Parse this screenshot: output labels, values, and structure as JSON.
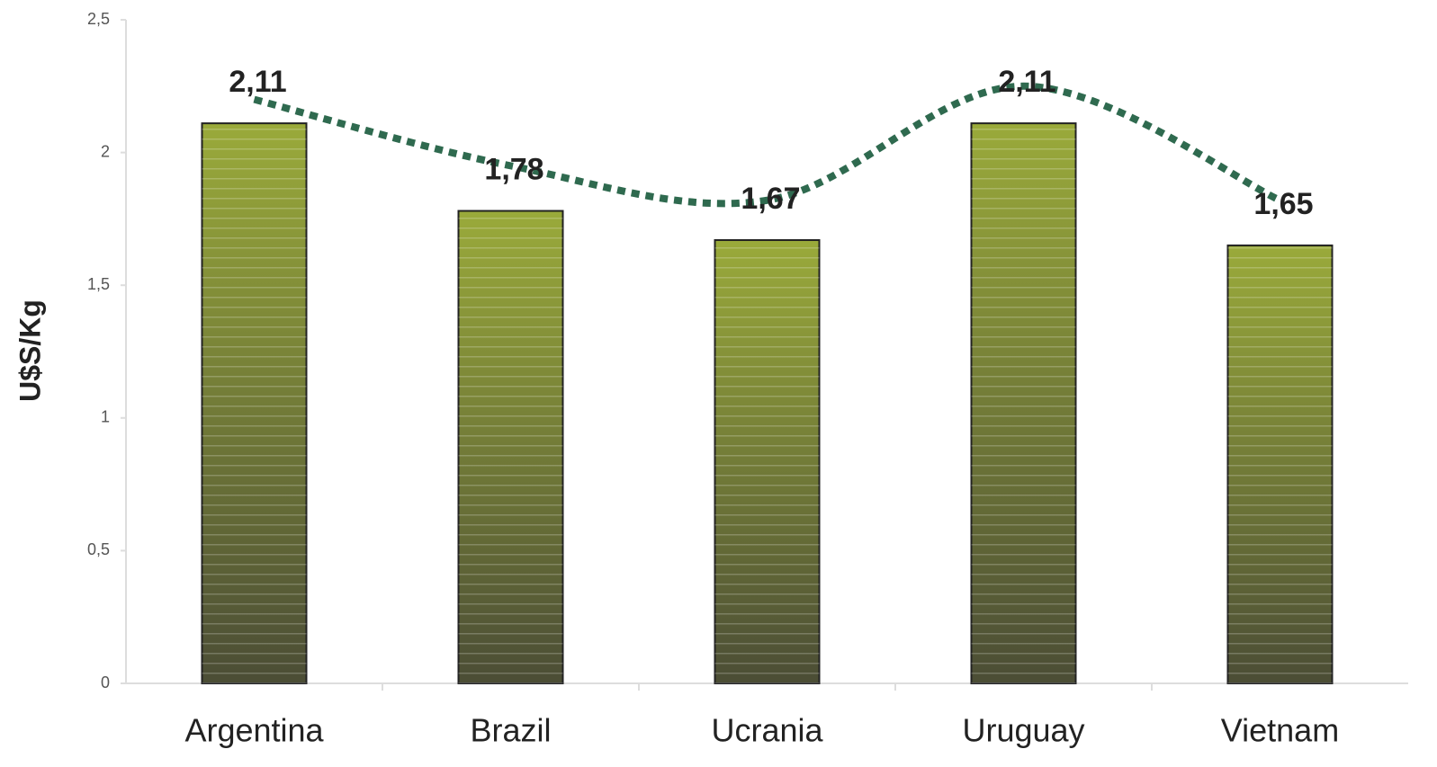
{
  "chart_data": {
    "type": "bar",
    "y_label": "U$S/Kg",
    "categories": [
      "Argentina",
      "Brazil",
      "Ucrania",
      "Uruguay",
      "Vietnam"
    ],
    "values": [
      2.11,
      1.78,
      1.67,
      2.11,
      1.65
    ],
    "value_labels": [
      "2,11",
      "1,78",
      "1,67",
      "2,11",
      "1,65"
    ],
    "color": "#8f9c38",
    "line": {
      "color": "#2f6a4f",
      "values": [
        2.2,
        1.95,
        1.82,
        2.25,
        1.82
      ]
    },
    "ylim": [
      0,
      2.5
    ],
    "yticks": [
      0,
      {
        "value": 0.5,
        "label": "0,5"
      },
      1,
      {
        "value": 1.5,
        "label": "1,5"
      },
      2,
      {
        "value": 2.5,
        "label": "2,5"
      }
    ],
    "grid": false
  }
}
